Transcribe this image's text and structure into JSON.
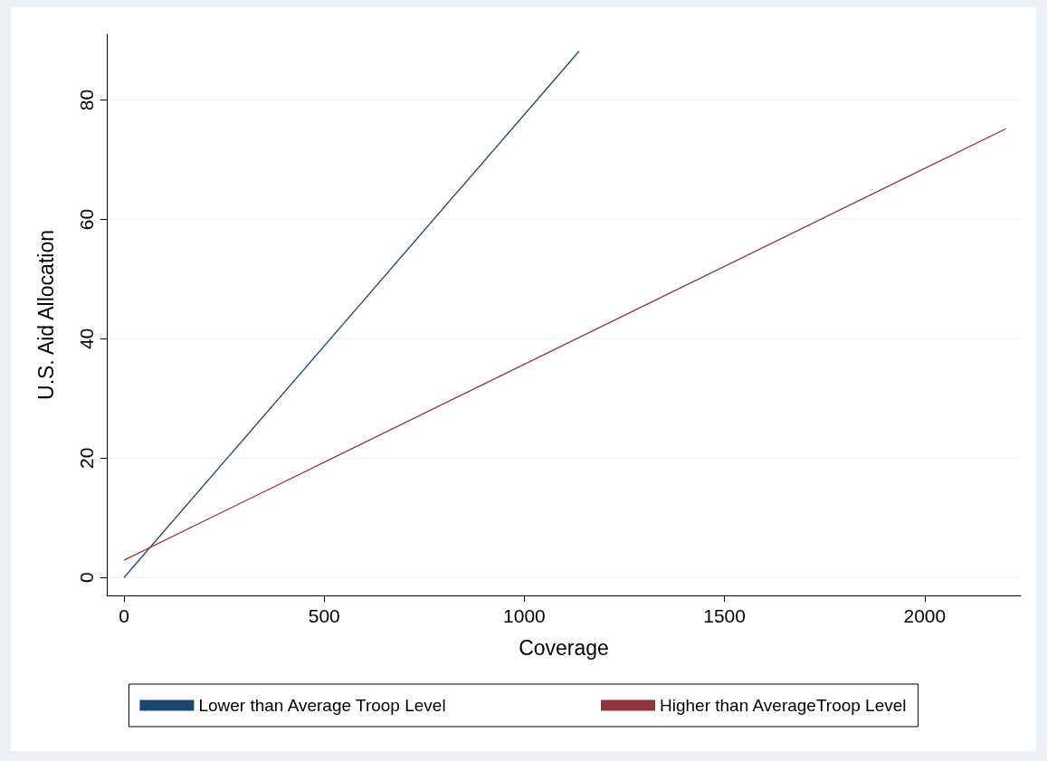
{
  "chart_data": {
    "type": "line",
    "xlabel": "Coverage",
    "ylabel": "U.S. Aid Allocation",
    "series": [
      {
        "name": "Lower than Average Troop Level",
        "color": "#1a476f",
        "x": [
          0,
          1137
        ],
        "values": [
          0,
          88.2
        ]
      },
      {
        "name": "Higher than AverageTroop Level",
        "color": "#90353b",
        "x": [
          0,
          2203
        ],
        "values": [
          2.9,
          75.2
        ]
      }
    ],
    "xlim": [
      -43,
      2240
    ],
    "ylim": [
      -3,
      91
    ],
    "xticks": [
      0,
      500,
      1000,
      1500,
      2000
    ],
    "yticks": [
      0,
      20,
      40,
      60,
      80
    ],
    "grid": "y",
    "legend": "bottom",
    "marker": "none",
    "line_style": "solid"
  }
}
